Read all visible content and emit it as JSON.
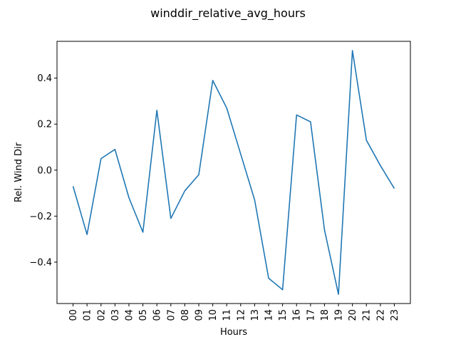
{
  "chart_data": {
    "type": "line",
    "title": "winddir_relative_avg_hours",
    "xlabel": "Hours",
    "ylabel": "Rel. Wind Dir",
    "categories": [
      "00",
      "01",
      "02",
      "03",
      "04",
      "05",
      "06",
      "07",
      "08",
      "09",
      "10",
      "11",
      "12",
      "13",
      "14",
      "15",
      "16",
      "17",
      "18",
      "19",
      "20",
      "21",
      "22",
      "23"
    ],
    "series": [
      {
        "values": [
          -0.07,
          -0.28,
          0.05,
          0.09,
          -0.12,
          -0.27,
          0.26,
          -0.21,
          -0.09,
          -0.02,
          0.39,
          0.27,
          0.07,
          -0.13,
          -0.47,
          -0.52,
          0.24,
          0.21,
          -0.26,
          -0.54,
          0.52,
          0.13,
          0.02,
          -0.08
        ],
        "color": "#1f77b4"
      }
    ],
    "yticks": [
      -0.4,
      -0.2,
      0.0,
      0.2,
      0.4
    ],
    "ytick_labels": [
      "−0.4",
      "−0.2",
      "0.0",
      "0.2",
      "0.4"
    ],
    "ylim": [
      -0.58,
      0.56
    ],
    "grid": false,
    "legend": "none"
  }
}
